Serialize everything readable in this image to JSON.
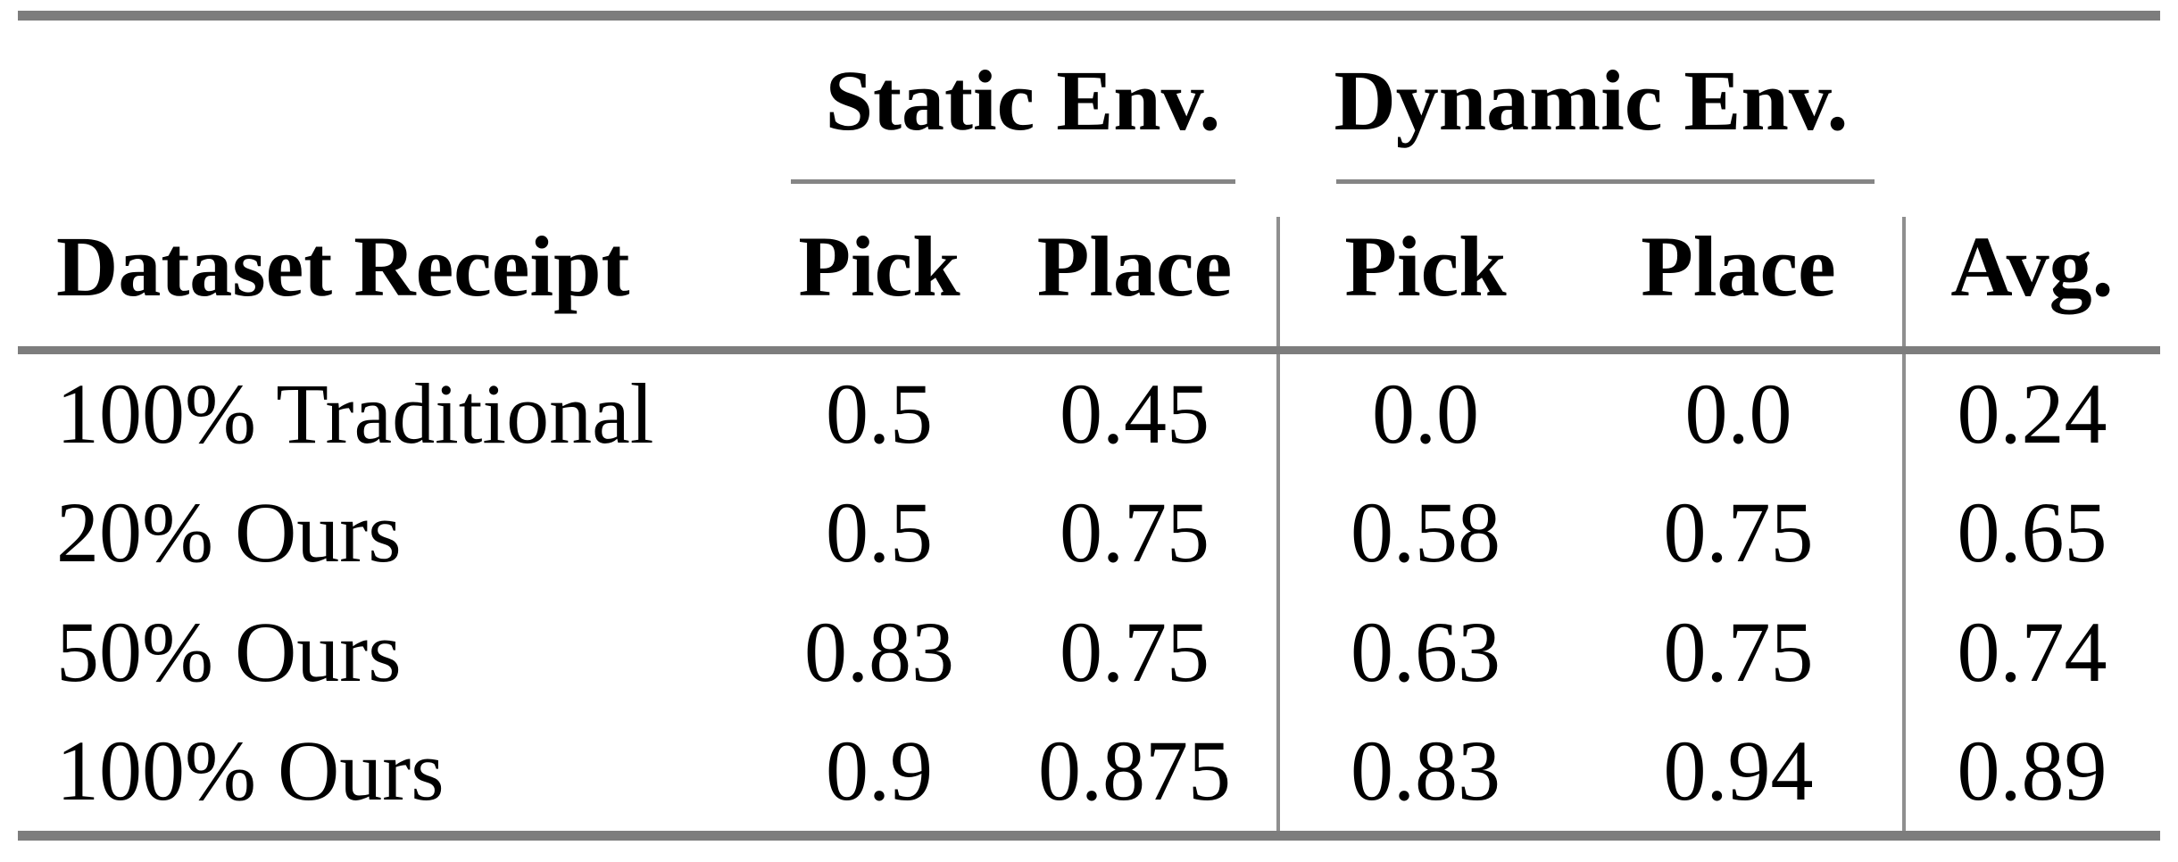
{
  "table": {
    "group_headers": [
      {
        "label": "Static Env."
      },
      {
        "label": "Dynamic Env."
      }
    ],
    "columns": {
      "row_label": "Dataset Receipt",
      "static_pick": "Pick",
      "static_place": "Place",
      "dynamic_pick": "Pick",
      "dynamic_place": "Place",
      "avg": "Avg."
    },
    "rows": [
      {
        "label": "100% Traditional",
        "static_pick": "0.5",
        "static_place": "0.45",
        "dynamic_pick": "0.0",
        "dynamic_place": "0.0",
        "avg": "0.24"
      },
      {
        "label": "20% Ours",
        "static_pick": "0.5",
        "static_place": "0.75",
        "dynamic_pick": "0.58",
        "dynamic_place": "0.75",
        "avg": "0.65"
      },
      {
        "label": "50% Ours",
        "static_pick": "0.83",
        "static_place": "0.75",
        "dynamic_pick": "0.63",
        "dynamic_place": "0.75",
        "avg": "0.74"
      },
      {
        "label": "100% Ours",
        "static_pick": "0.9",
        "static_place": "0.875",
        "dynamic_pick": "0.83",
        "dynamic_place": "0.94",
        "avg": "0.89"
      }
    ],
    "colors": {
      "text": "#000000",
      "rule": "#7d7d7d",
      "divider": "#8f8f8f",
      "background": "#ffffff"
    }
  }
}
